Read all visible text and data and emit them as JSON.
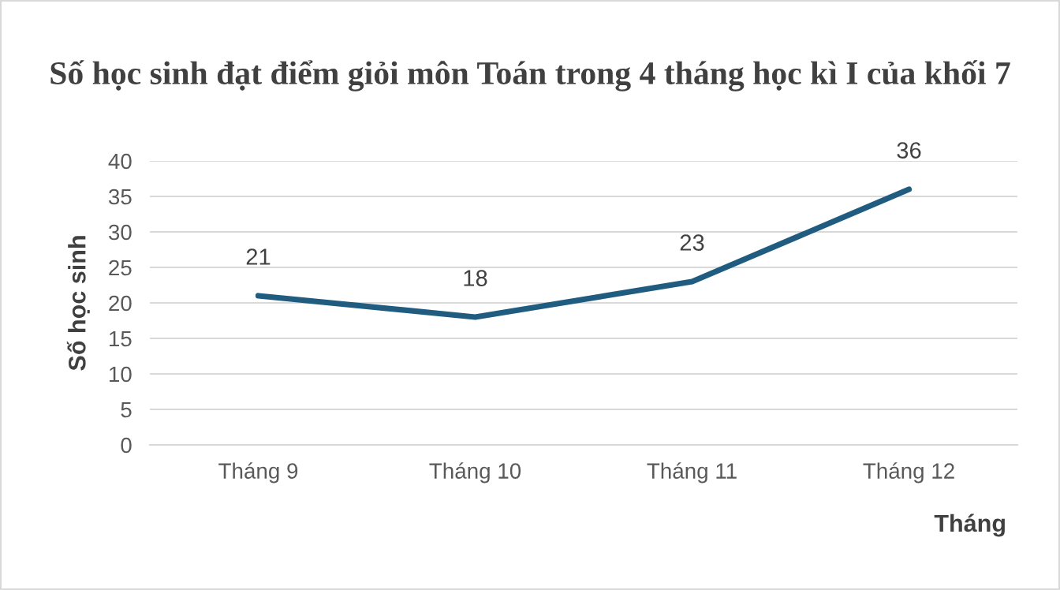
{
  "chart_data": {
    "type": "line",
    "title": "Số học sinh đạt điểm giỏi môn Toán trong 4 tháng học kì I của khối 7",
    "xlabel": "Tháng",
    "ylabel": "Số học sinh",
    "categories": [
      "Tháng 9",
      "Tháng 10",
      "Tháng 11",
      "Tháng 12"
    ],
    "series": [
      {
        "color": "#1f5c80",
        "values": [
          21,
          18,
          23,
          36
        ]
      }
    ],
    "ylim": [
      0,
      40
    ],
    "yticks": [
      0,
      5,
      10,
      15,
      20,
      25,
      30,
      35,
      40
    ],
    "data_labels": true,
    "grid": "y",
    "marker": "none",
    "line_style": "solid"
  }
}
